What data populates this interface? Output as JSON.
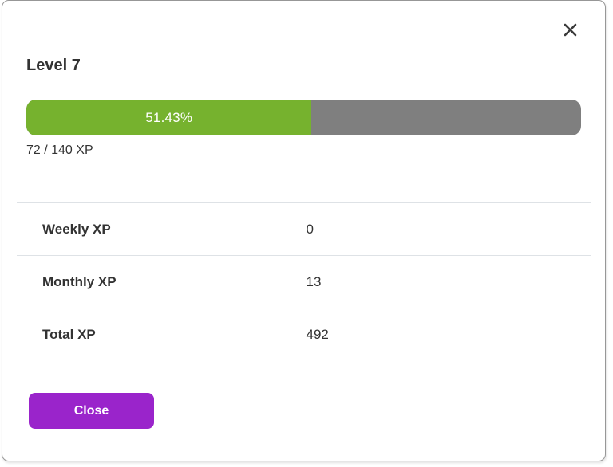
{
  "modal": {
    "title": "Level 7",
    "progress": {
      "percent_label": "51.43%",
      "percent_value": 51.43,
      "xp_label": "72 / 140 XP",
      "current_xp": 72,
      "next_level_xp": 140,
      "fill_color": "#76b22e",
      "track_color": "#7f7f7f"
    },
    "stats": [
      {
        "label": "Weekly XP",
        "value": "0"
      },
      {
        "label": "Monthly XP",
        "value": "13"
      },
      {
        "label": "Total XP",
        "value": "492"
      }
    ],
    "close_button_label": "Close",
    "close_button_color": "#9a24cb",
    "close_icon": "x-icon"
  }
}
